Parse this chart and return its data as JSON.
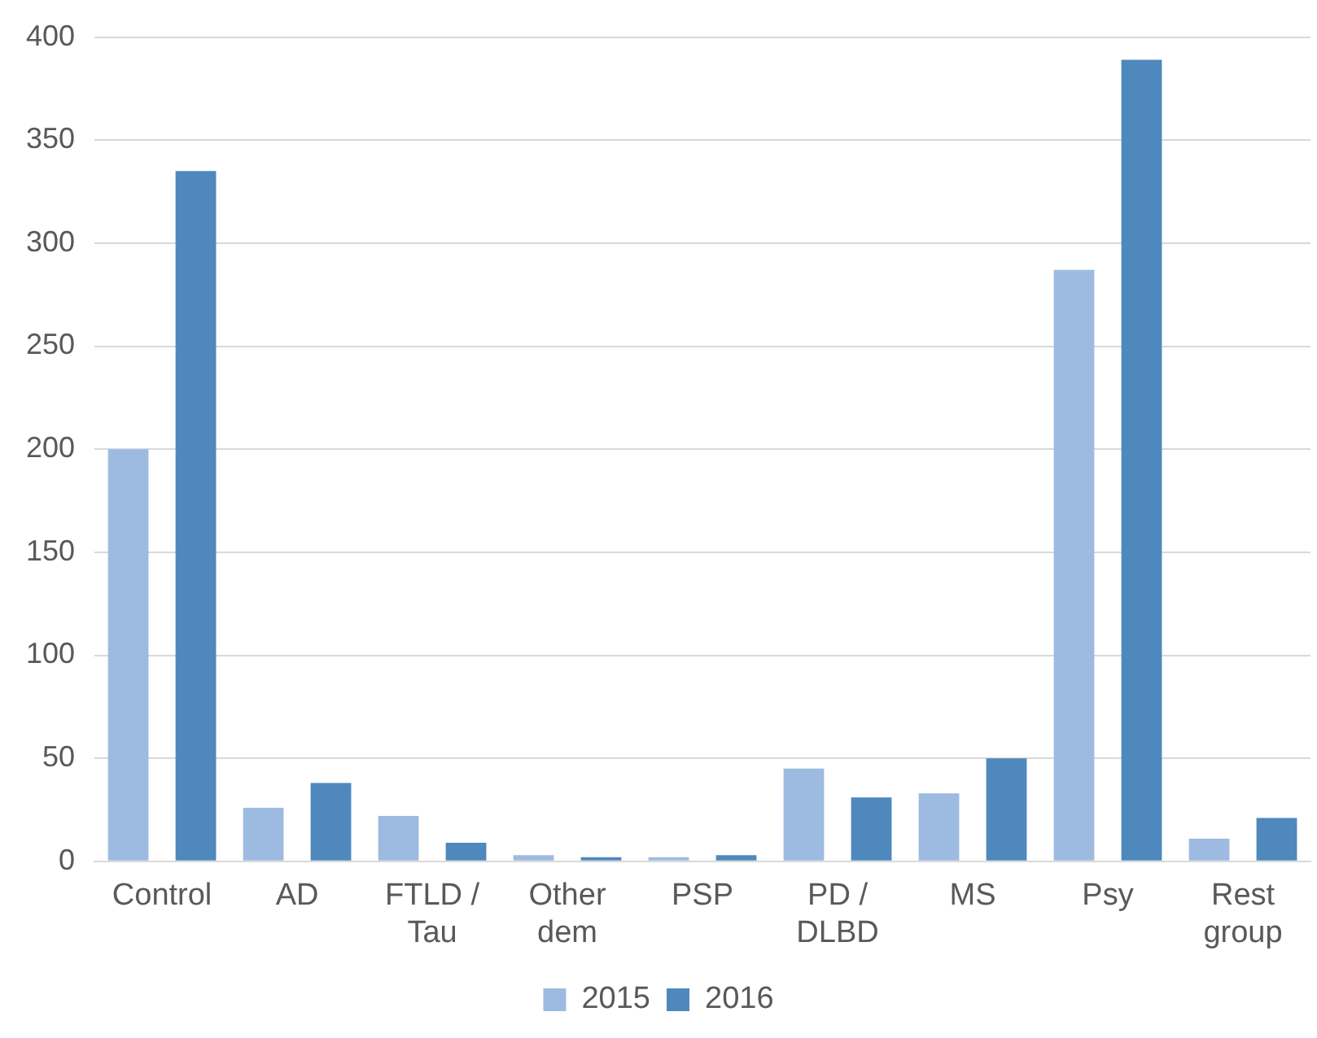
{
  "chart_data": {
    "type": "bar",
    "categories": [
      "Control",
      "AD",
      "FTLD / Tau",
      "Other dem",
      "PSP",
      "PD / DLBD",
      "MS",
      "Psy",
      "Rest group"
    ],
    "series": [
      {
        "name": "2015",
        "color": "#9dbbe0",
        "values": [
          200,
          26,
          22,
          3,
          2,
          45,
          33,
          287,
          11
        ]
      },
      {
        "name": "2016",
        "color": "#4f88bd",
        "values": [
          335,
          38,
          9,
          2,
          3,
          31,
          50,
          389,
          21
        ]
      }
    ],
    "ylim": [
      0,
      400
    ],
    "yticks": [
      0,
      50,
      100,
      150,
      200,
      250,
      300,
      350,
      400
    ],
    "grid": "y",
    "legend": "bottom"
  }
}
